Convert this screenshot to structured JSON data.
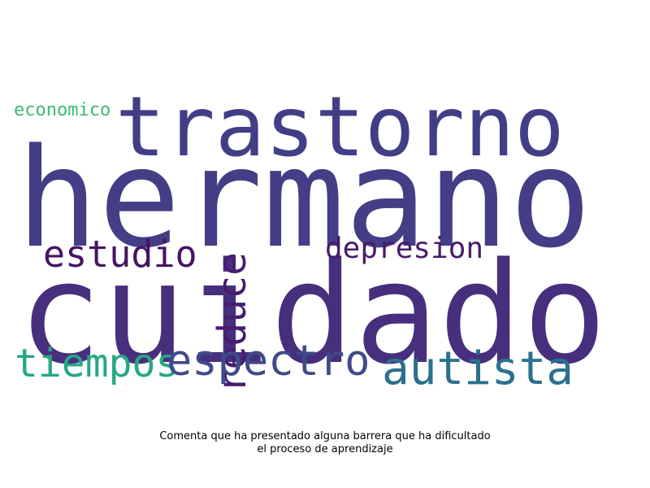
{
  "words": [
    {
      "id": "hermano",
      "text": "hermano",
      "color": "#433e85"
    },
    {
      "id": "cuidado",
      "text": "cuidado",
      "color": "#472f7d"
    },
    {
      "id": "trastorno",
      "text": "trastorno",
      "color": "#423e85"
    },
    {
      "id": "reduce",
      "text": "reduce",
      "color": "#481c6e"
    },
    {
      "id": "estudio",
      "text": "estudio",
      "color": "#471365"
    },
    {
      "id": "depresion",
      "text": "depresion",
      "color": "#481a6c"
    },
    {
      "id": "economico",
      "text": "economico",
      "color": "#3bbb75"
    },
    {
      "id": "tiempos",
      "text": "tiempos",
      "color": "#26a784"
    },
    {
      "id": "espectro",
      "text": "espectro",
      "color": "#404a8a"
    },
    {
      "id": "autista",
      "text": "autista",
      "color": "#2c708e"
    }
  ],
  "caption": {
    "line1": "Comenta que ha presentado alguna barrera que ha dificultado",
    "line2": "el proceso de aprendizaje"
  }
}
